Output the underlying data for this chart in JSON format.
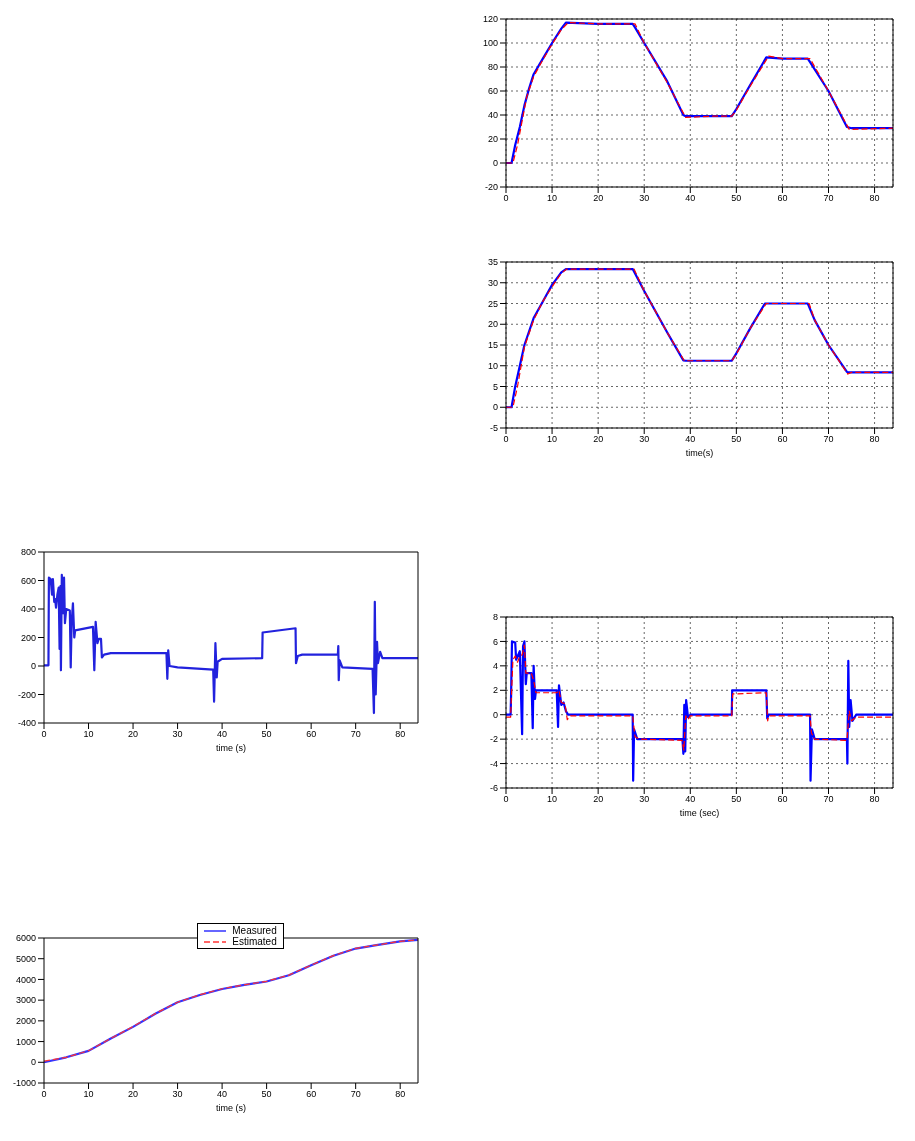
{
  "chart_data": [
    {
      "type": "line",
      "xlim": [
        0,
        84
      ],
      "ylim": [
        -20,
        120
      ],
      "xticks": [
        0,
        10,
        20,
        30,
        40,
        50,
        60,
        70,
        80
      ],
      "yticks": [
        -20,
        0,
        20,
        40,
        60,
        80,
        100,
        120
      ],
      "grid": true,
      "series": [
        {
          "color": "#0000ff",
          "line_style": "solid",
          "x": [
            0,
            1.2,
            2,
            3,
            4,
            5,
            6,
            8,
            10,
            12,
            13,
            20,
            27.5,
            28,
            30,
            35,
            38.5,
            39,
            45,
            49,
            50,
            53,
            56.5,
            60,
            65.5,
            66,
            70,
            74,
            75,
            84
          ],
          "values": [
            0,
            0,
            15,
            30,
            48,
            62,
            74,
            87,
            100,
            112,
            117,
            116,
            116,
            113,
            100,
            68,
            40,
            39,
            39,
            39,
            45,
            65,
            88,
            87,
            87,
            84,
            60,
            30,
            29,
            29
          ]
        },
        {
          "color": "#ff0000",
          "line_style": "dashed",
          "x": [
            0,
            1.5,
            2.5,
            3.5,
            4.5,
            6,
            8,
            10,
            12,
            13.5,
            20,
            28,
            30,
            35,
            39,
            45,
            49,
            50,
            53,
            57,
            60,
            66,
            70,
            74.5,
            84
          ],
          "values": [
            0,
            0,
            15,
            35,
            55,
            72,
            86,
            99,
            111,
            117,
            116,
            116,
            100,
            67,
            38,
            39,
            39,
            44,
            64,
            89,
            87,
            87,
            60,
            28,
            29
          ]
        }
      ]
    },
    {
      "type": "line",
      "xlabel": "time(s)",
      "xlim": [
        0,
        84
      ],
      "ylim": [
        -5,
        35
      ],
      "xticks": [
        0,
        10,
        20,
        30,
        40,
        50,
        60,
        70,
        80
      ],
      "yticks": [
        -5,
        0,
        5,
        10,
        15,
        20,
        25,
        30,
        35
      ],
      "grid": true,
      "series": [
        {
          "color": "#0000ff",
          "line_style": "solid",
          "x": [
            0,
            1.2,
            2,
            3,
            4,
            6,
            8,
            10,
            12,
            13,
            27.5,
            30,
            35,
            38.5,
            39,
            49,
            50,
            53,
            56.2,
            65.5,
            67,
            70,
            74,
            75,
            84
          ],
          "values": [
            0,
            0,
            5,
            10,
            15,
            21.5,
            25.5,
            29.5,
            32.5,
            33.3,
            33.3,
            28,
            18,
            11.3,
            11.2,
            11.2,
            13,
            19,
            25,
            25,
            21,
            15,
            8.5,
            8.4,
            8.4
          ]
        },
        {
          "color": "#ff0000",
          "line_style": "dashed",
          "x": [
            0,
            1.5,
            2.5,
            4,
            6,
            8,
            10,
            12,
            13.2,
            27.8,
            30,
            35,
            38.7,
            49,
            50,
            53,
            56.5,
            65.8,
            67,
            70,
            74.2,
            75,
            84
          ],
          "values": [
            0,
            0,
            5,
            14.5,
            21,
            25.5,
            29,
            32.3,
            33.3,
            33.3,
            28,
            18,
            11.2,
            11.2,
            12.8,
            19,
            25,
            25,
            21,
            15,
            8,
            8.4,
            8.4
          ]
        }
      ]
    },
    {
      "type": "line",
      "xlabel": "time (s)",
      "xlim": [
        0,
        84
      ],
      "ylim": [
        -400,
        800
      ],
      "xticks": [
        0,
        10,
        20,
        30,
        40,
        50,
        60,
        70,
        80
      ],
      "yticks": [
        -400,
        -200,
        0,
        200,
        400,
        600,
        800
      ],
      "series": [
        {
          "color": "#2222dd",
          "line_style": "solid",
          "x": [
            0,
            1,
            1.1,
            1.5,
            1.8,
            2,
            2.3,
            2.5,
            2.7,
            3,
            3.3,
            3.5,
            3.7,
            3.8,
            4,
            4.3,
            4.5,
            4.7,
            5,
            5.8,
            6,
            6.2,
            6.5,
            6.8,
            7,
            11,
            11.3,
            11.6,
            12,
            12.3,
            12.8,
            13,
            13.5,
            15,
            27.5,
            27.7,
            27.9,
            28.2,
            30,
            38,
            38.2,
            38.5,
            38.8,
            39,
            40,
            49,
            49.1,
            56.5,
            56.6,
            57,
            58,
            66,
            66.1,
            66.2,
            66.4,
            67,
            73.8,
            74.1,
            74.3,
            74.5,
            74.8,
            75,
            75.5,
            76,
            84
          ],
          "values": [
            5,
            5,
            620,
            610,
            500,
            610,
            450,
            470,
            410,
            500,
            550,
            120,
            560,
            -30,
            640,
            370,
            620,
            300,
            400,
            390,
            -10,
            300,
            440,
            200,
            250,
            275,
            -30,
            310,
            160,
            190,
            190,
            60,
            80,
            90,
            90,
            -90,
            110,
            0,
            -10,
            -25,
            -250,
            160,
            -80,
            30,
            50,
            55,
            235,
            265,
            20,
            70,
            80,
            80,
            140,
            -100,
            40,
            -10,
            -20,
            -330,
            450,
            -200,
            170,
            20,
            100,
            55,
            55
          ]
        }
      ]
    },
    {
      "type": "line",
      "xlabel": "time (sec)",
      "xlim": [
        0,
        84
      ],
      "ylim": [
        -6,
        8
      ],
      "xticks": [
        0,
        10,
        20,
        30,
        40,
        50,
        60,
        70,
        80
      ],
      "yticks": [
        -6,
        -4,
        -2,
        0,
        2,
        4,
        6,
        8
      ],
      "grid": true,
      "series": [
        {
          "color": "#0000ff",
          "line_style": "solid",
          "x": [
            0,
            1,
            1.1,
            1.3,
            2,
            2.2,
            3,
            3.5,
            3.7,
            4,
            4.3,
            4.5,
            5.5,
            5.8,
            6,
            6.3,
            6.5,
            11,
            11.3,
            11.5,
            12,
            12.5,
            13,
            13.5,
            27.5,
            27.6,
            27.8,
            28.5,
            38.3,
            38.5,
            38.7,
            38.9,
            39.1,
            39.5,
            40,
            49,
            49.1,
            56.5,
            56.7,
            57,
            66,
            66.1,
            66.4,
            67,
            74,
            74.1,
            74.3,
            74.5,
            74.8,
            75.2,
            76,
            84
          ],
          "values": [
            0,
            0,
            1.5,
            6,
            5.9,
            4.5,
            5.2,
            -1.6,
            5.6,
            6,
            2.5,
            3.4,
            3.4,
            -1.1,
            4,
            1.3,
            2,
            2,
            -1,
            2.4,
            0.8,
            1,
            0.3,
            0,
            0,
            -5.4,
            -1.2,
            -2,
            -2,
            -3.2,
            0.8,
            -3,
            1.2,
            -0.2,
            0,
            0,
            2,
            2,
            -0.3,
            0,
            0,
            -5.4,
            -1.2,
            -2,
            -2,
            -4,
            4.4,
            -1,
            1.2,
            -0.5,
            0,
            0
          ]
        },
        {
          "color": "#ff0000",
          "line_style": "dashed",
          "x": [
            0,
            1,
            1.5,
            2,
            2.5,
            3,
            3.5,
            4,
            4.3,
            5.5,
            6,
            6.5,
            11,
            11.5,
            12,
            12.8,
            13.3,
            14,
            27.5,
            28,
            29,
            38.2,
            38.6,
            39,
            39.5,
            40,
            49,
            49.2,
            56.5,
            56.8,
            57,
            66,
            66.3,
            67,
            74,
            74.5,
            75,
            76,
            84
          ],
          "values": [
            -0.2,
            -0.2,
            4.5,
            4.8,
            4.3,
            4.8,
            4.9,
            5.7,
            3.4,
            3.4,
            2.8,
            1.8,
            1.8,
            2,
            1,
            0.9,
            -0.4,
            -0.1,
            -0.1,
            -1.8,
            -2,
            -2.1,
            -2.9,
            -0.1,
            -0.4,
            -0.1,
            -0.1,
            1.7,
            1.8,
            -0.5,
            -0.1,
            -0.1,
            -1.5,
            -2,
            -2.1,
            0.3,
            -0.5,
            -0.2,
            -0.2
          ]
        }
      ]
    },
    {
      "type": "line",
      "xlabel": "time (s)",
      "xlim": [
        0,
        84
      ],
      "ylim": [
        -1000,
        6000
      ],
      "xticks": [
        0,
        10,
        20,
        30,
        40,
        50,
        60,
        70,
        80
      ],
      "yticks": [
        -1000,
        0,
        1000,
        2000,
        3000,
        4000,
        5000,
        6000
      ],
      "legend": "top",
      "series": [
        {
          "name": "Measured",
          "color": "#3333ff",
          "line_style": "solid",
          "x": [
            0,
            5,
            10,
            15,
            20,
            25,
            30,
            35,
            40,
            45,
            50,
            55,
            60,
            65,
            70,
            75,
            80,
            84
          ],
          "values": [
            0,
            240,
            550,
            1150,
            1710,
            2340,
            2900,
            3250,
            3540,
            3740,
            3900,
            4200,
            4680,
            5140,
            5490,
            5670,
            5840,
            5910
          ]
        },
        {
          "name": "Estimated",
          "color": "#ff3333",
          "line_style": "dashed",
          "x": [
            0,
            5,
            10,
            15,
            20,
            25,
            30,
            35,
            40,
            45,
            50,
            55,
            60,
            65,
            70,
            75,
            80,
            84
          ],
          "values": [
            60,
            240,
            560,
            1150,
            1720,
            2350,
            2900,
            3260,
            3550,
            3740,
            3910,
            4210,
            4690,
            5150,
            5500,
            5670,
            5840,
            5910
          ]
        }
      ]
    }
  ]
}
